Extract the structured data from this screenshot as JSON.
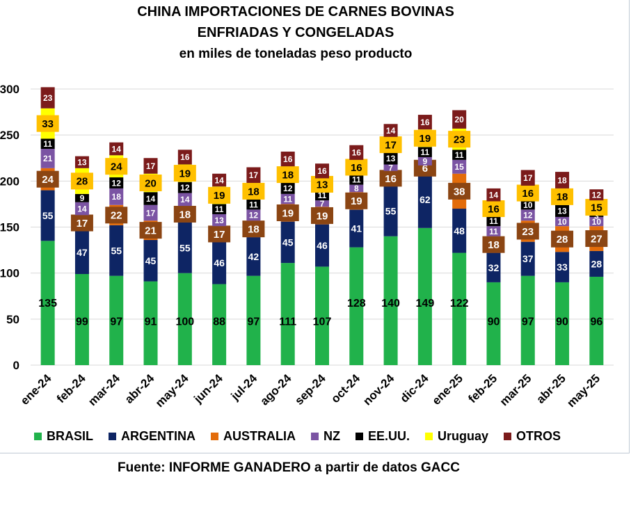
{
  "title_line1": "CHINA IMPORTACIONES DE CARNES BOVINAS",
  "title_line2": "ENFRIADAS  Y CONGELADAS",
  "subtitle": "en miles de toneladas peso producto",
  "source": "Fuente: INFORME GANADERO a partir de datos GACC",
  "chart_data": {
    "type": "bar",
    "stacked": true,
    "title": "CHINA IMPORTACIONES DE CARNES BOVINAS ENFRIADAS  Y CONGELADAS",
    "subtitle": "en miles de toneladas peso producto",
    "categories": [
      "ene-24",
      "feb-24",
      "mar-24",
      "abr-24",
      "may-24",
      "jun-24",
      "jul-24",
      "ago-24",
      "sep-24",
      "oct-24",
      "nov-24",
      "dic-24",
      "ene-25",
      "feb-25",
      "mar-25",
      "abr-25",
      "may-25"
    ],
    "y_ticks": [
      "0",
      "50",
      "100",
      "150",
      "200",
      "250",
      "300"
    ],
    "ylim": [
      0,
      300
    ],
    "grid": true,
    "legend_position": "bottom",
    "series": [
      {
        "name": "BRASIL",
        "color": "#21b24b",
        "values": [
          135,
          99,
          97,
          91,
          100,
          88,
          97,
          111,
          107,
          128,
          140,
          149,
          122,
          90,
          97,
          90,
          96
        ]
      },
      {
        "name": "ARGENTINA",
        "color": "#0e2564",
        "values": [
          55,
          47,
          55,
          45,
          55,
          46,
          42,
          45,
          46,
          41,
          55,
          62,
          48,
          32,
          37,
          33,
          28
        ]
      },
      {
        "name": "AUSTRALIA",
        "color": "#e36c0a",
        "values": [
          24,
          17,
          22,
          21,
          18,
          17,
          18,
          19,
          19,
          19,
          16,
          6,
          38,
          18,
          23,
          28,
          27
        ]
      },
      {
        "name": "NZ",
        "color": "#7b54a3",
        "values": [
          21,
          14,
          18,
          17,
          14,
          13,
          12,
          11,
          7,
          8,
          7,
          9,
          15,
          11,
          12,
          10,
          10
        ]
      },
      {
        "name": "EE.UU.",
        "color": "#000000",
        "values": [
          11,
          9,
          12,
          14,
          12,
          11,
          11,
          12,
          11,
          11,
          13,
          11,
          11,
          11,
          10,
          13,
          3
        ]
      },
      {
        "name": "Uruguay",
        "color": "#ffff00",
        "values": [
          33,
          28,
          24,
          20,
          19,
          19,
          18,
          18,
          13,
          16,
          17,
          19,
          23,
          16,
          16,
          18,
          15
        ]
      },
      {
        "name": "OTROS",
        "color": "#7b1b1b",
        "values": [
          23,
          13,
          14,
          17,
          16,
          14,
          17,
          16,
          16,
          16,
          14,
          16,
          20,
          14,
          17,
          18,
          12
        ]
      }
    ]
  }
}
